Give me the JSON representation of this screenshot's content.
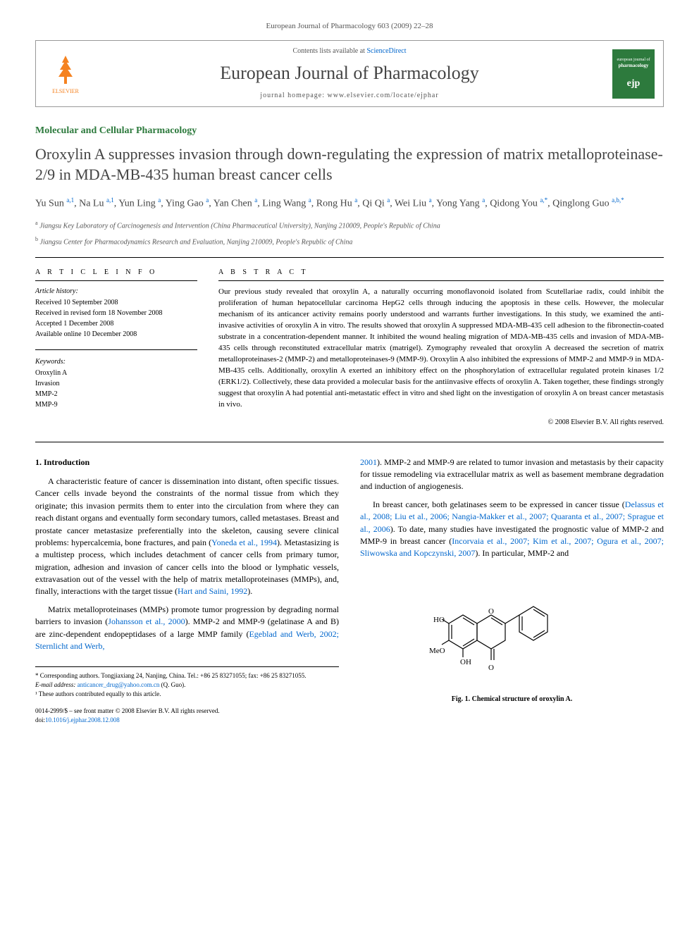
{
  "header": {
    "journal_ref": "European Journal of Pharmacology 603 (2009) 22–28",
    "contents_prefix": "Contents lists available at ",
    "contents_link": "ScienceDirect",
    "journal_title": "European Journal of Pharmacology",
    "homepage_prefix": "journal homepage: ",
    "homepage": "www.elsevier.com/locate/ejphar",
    "elsevier_label": "ELSEVIER",
    "ejp_badge_top": "european journal of",
    "ejp_badge_main": "pharmacology",
    "ejp_badge_icon": "ejp"
  },
  "article": {
    "section": "Molecular and Cellular Pharmacology",
    "title": "Oroxylin A suppresses invasion through down-regulating the expression of matrix metalloproteinase-2/9 in MDA-MB-435 human breast cancer cells",
    "authors_html": "Yu Sun <span class='sup'>a,1</span>, Na Lu <span class='sup'>a,1</span>, Yun Ling <span class='sup'>a</span>, Ying Gao <span class='sup'>a</span>, Yan Chen <span class='sup'>a</span>, Ling Wang <span class='sup'>a</span>, Rong Hu <span class='sup'>a</span>, Qi Qi <span class='sup'>a</span>, Wei Liu <span class='sup'>a</span>, Yong Yang <span class='sup'>a</span>, Qidong You <span class='sup'>a,*</span>, Qinglong Guo <span class='sup'>a,b,*</span>",
    "affiliations": [
      {
        "sup": "a",
        "text": "Jiangsu Key Laboratory of Carcinogenesis and Intervention (China Pharmaceutical University), Nanjing 210009, People's Republic of China"
      },
      {
        "sup": "b",
        "text": "Jiangsu Center for Pharmacodynamics Research and Evaluation, Nanjing 210009, People's Republic of China"
      }
    ]
  },
  "info": {
    "heading": "A R T I C L E   I N F O",
    "history_label": "Article history:",
    "history": [
      "Received 10 September 2008",
      "Received in revised form 18 November 2008",
      "Accepted 1 December 2008",
      "Available online 10 December 2008"
    ],
    "keywords_label": "Keywords:",
    "keywords": [
      "Oroxylin A",
      "Invasion",
      "MMP-2",
      "MMP-9"
    ]
  },
  "abstract": {
    "heading": "A B S T R A C T",
    "text": "Our previous study revealed that oroxylin A, a naturally occurring monoflavonoid isolated from Scutellariae radix, could inhibit the proliferation of human hepatocellular carcinoma HepG2 cells through inducing the apoptosis in these cells. However, the molecular mechanism of its anticancer activity remains poorly understood and warrants further investigations. In this study, we examined the anti-invasive activities of oroxylin A in vitro. The results showed that oroxylin A suppressed MDA-MB-435 cell adhesion to the fibronectin-coated substrate in a concentration-dependent manner. It inhibited the wound healing migration of MDA-MB-435 cells and invasion of MDA-MB-435 cells through reconstituted extracellular matrix (matrigel). Zymography revealed that oroxylin A decreased the secretion of matrix metalloproteinases-2 (MMP-2) and metalloproteinases-9 (MMP-9). Oroxylin A also inhibited the expressions of MMP-2 and MMP-9 in MDA-MB-435 cells. Additionally, oroxylin A exerted an inhibitory effect on the phosphorylation of extracellular regulated protein kinases 1/2 (ERK1/2). Collectively, these data provided a molecular basis for the antiinvasive effects of oroxylin A. Taken together, these findings strongly suggest that oroxylin A had potential anti-metastatic effect in vitro and shed light on the investigation of oroxylin A on breast cancer metastasis in vivo.",
    "copyright": "© 2008 Elsevier B.V. All rights reserved."
  },
  "body": {
    "intro_heading": "1. Introduction",
    "left_paras": [
      "A characteristic feature of cancer is dissemination into distant, often specific tissues. Cancer cells invade beyond the constraints of the normal tissue from which they originate; this invasion permits them to enter into the circulation from where they can reach distant organs and eventually form secondary tumors, called metastases. Breast and prostate cancer metastasize preferentially into the skeleton, causing severe clinical problems: hypercalcemia, bone fractures, and pain (<span class='citation'>Yoneda et al., 1994</span>). Metastasizing is a multistep process, which includes detachment of cancer cells from primary tumor, migration, adhesion and invasion of cancer cells into the blood or lymphatic vessels, extravasation out of the vessel with the help of matrix metalloproteinases (MMPs), and, finally, interactions with the target tissue (<span class='citation'>Hart and Saini, 1992</span>).",
      "Matrix metalloproteinases (MMPs) promote tumor progression by degrading normal barriers to invasion (<span class='citation'>Johansson et al., 2000</span>). MMP-2 and MMP-9 (gelatinase A and B) are zinc-dependent endopeptidases of a large MMP family (<span class='citation'>Egeblad and Werb, 2002; Sternlicht and Werb,</span>"
    ],
    "right_paras": [
      "<span class='citation'>2001</span>). MMP-2 and MMP-9 are related to tumor invasion and metastasis by their capacity for tissue remodeling via extracellular matrix as well as basement membrane degradation and induction of angiogenesis.",
      "In breast cancer, both gelatinases seem to be expressed in cancer tissue (<span class='citation'>Delassus et al., 2008; Liu et al., 2006; Nangia-Makker et al., 2007; Quaranta et al., 2007; Sprague et al., 2006</span>). To date, many studies have investigated the prognostic value of MMP-2 and MMP-9 in breast cancer (<span class='citation'>Incorvaia et al., 2007; Kim et al., 2007; Ogura et al., 2007; Sliwowska and Kopczynski, 2007</span>). In particular, MMP-2 and"
    ]
  },
  "figure": {
    "caption": "Fig. 1. Chemical structure of oroxylin A.",
    "labels": {
      "ho": "HO",
      "meo": "MeO",
      "oh": "OH",
      "o1": "O",
      "o2": "O"
    },
    "stroke_color": "#000000",
    "stroke_width": 1.2
  },
  "footnotes": {
    "corr": "* Corresponding authors. Tongjiaxiang 24, Nanjing, China. Tel.: +86 25 83271055; fax: +86 25 83271055.",
    "email_label": "E-mail address: ",
    "email": "anticancer_drug@yahoo.com.cn",
    "email_suffix": " (Q. Guo).",
    "equal": "¹ These authors contributed equally to this article."
  },
  "doi": {
    "line1": "0014-2999/$ – see front matter © 2008 Elsevier B.V. All rights reserved.",
    "line2_prefix": "doi:",
    "line2": "10.1016/j.ejphar.2008.12.008"
  },
  "colors": {
    "link": "#0066cc",
    "section_green": "#2d7a3d",
    "elsevier_orange": "#f58220",
    "text_gray": "#555555"
  }
}
